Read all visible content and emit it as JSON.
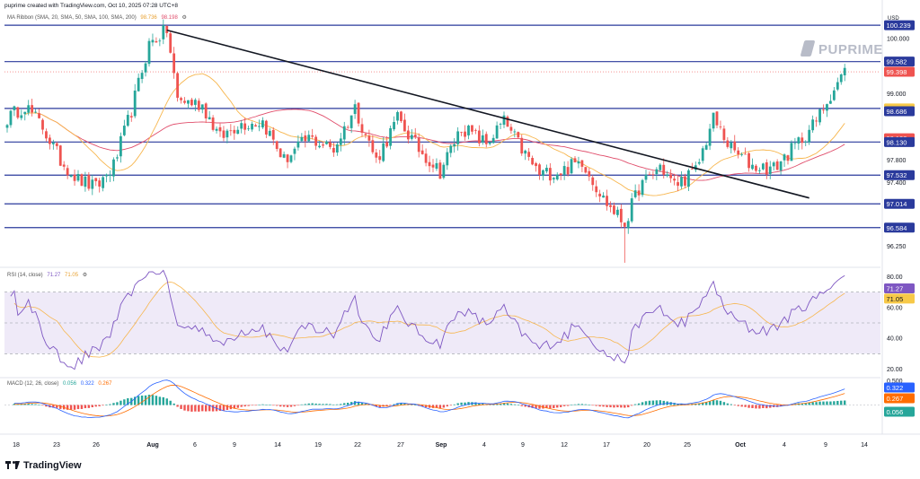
{
  "header": {
    "creator_line": "puprime created with TradingView.com, Oct 10, 2025 07:28 UTC+8"
  },
  "brand": {
    "name": "PUPRIME"
  },
  "currency": "USD",
  "footer": {
    "logo_text": "TradingView"
  },
  "colors": {
    "up": "#26a69a",
    "down": "#ef5350",
    "hline": "#2a3a9c",
    "trend": "#131722",
    "sma20": "#f7b64e",
    "sma50": "#e04d6b",
    "rsi": "#7e57c2",
    "rsi_ma": "#f7b64e",
    "rsi_band": "#efeaf8",
    "macd": "#2962ff",
    "signal": "#ff6d00",
    "hist_up": "#26a69a",
    "hist_down": "#ef5350"
  },
  "chart_data": [
    {
      "type": "candlestick",
      "indicator_label": "MA Ribbon (SMA, 20, SMA, 50, SMA, 100, SMA, 200)",
      "legend_values": [
        "98.736",
        "98.198"
      ],
      "y_ticks": [
        "100.000",
        "99.000",
        "97.800",
        "97.400",
        "96.250"
      ],
      "ylim": [
        95.9,
        100.5
      ],
      "x_ticks": [
        "18",
        "23",
        "26",
        "Aug",
        "6",
        "9",
        "14",
        "19",
        "22",
        "27",
        "Sep",
        "4",
        "9",
        "12",
        "17",
        "20",
        "25",
        "Oct",
        "4",
        "9",
        "14"
      ],
      "horizontal_levels": [
        100.239,
        99.582,
        98.736,
        98.13,
        97.532,
        97.014,
        96.584
      ],
      "price_labels": [
        {
          "text": "100.239",
          "value": 100.239,
          "color": "#2a3a9c"
        },
        {
          "text": "99.582",
          "value": 99.582,
          "color": "#2a3a9c"
        },
        {
          "text": "99.398",
          "value": 99.398,
          "color": "#ef5350"
        },
        {
          "text": "98.736",
          "value": 98.736,
          "color": "#f7c948"
        },
        {
          "text": "98.686",
          "value": 98.686,
          "color": "#2a3a9c"
        },
        {
          "text": "98.198",
          "value": 98.198,
          "color": "#ef5350"
        },
        {
          "text": "98.130",
          "value": 98.13,
          "color": "#2a3a9c"
        },
        {
          "text": "97.532",
          "value": 97.532,
          "color": "#2a3a9c"
        },
        {
          "text": "97.014",
          "value": 97.014,
          "color": "#2a3a9c"
        },
        {
          "text": "96.584",
          "value": 96.584,
          "color": "#2a3a9c"
        }
      ],
      "trendline": {
        "from": {
          "index": 45,
          "value": 100.15
        },
        "to": {
          "index": 226,
          "value": 97.12
        }
      },
      "anchors": [
        [
          0,
          98.55
        ],
        [
          5,
          98.8
        ],
        [
          10,
          98.4
        ],
        [
          15,
          97.8
        ],
        [
          20,
          97.45
        ],
        [
          25,
          97.3
        ],
        [
          30,
          97.7
        ],
        [
          35,
          98.7
        ],
        [
          40,
          99.9
        ],
        [
          45,
          100.15
        ],
        [
          48,
          98.9
        ],
        [
          55,
          98.8
        ],
        [
          60,
          98.2
        ],
        [
          65,
          98.45
        ],
        [
          72,
          98.5
        ],
        [
          78,
          97.8
        ],
        [
          85,
          98.2
        ],
        [
          92,
          98.0
        ],
        [
          98,
          98.75
        ],
        [
          104,
          97.8
        ],
        [
          110,
          98.55
        ],
        [
          116,
          98.0
        ],
        [
          122,
          97.6
        ],
        [
          128,
          98.4
        ],
        [
          135,
          98.1
        ],
        [
          140,
          98.5
        ],
        [
          146,
          97.9
        ],
        [
          150,
          97.55
        ],
        [
          156,
          97.6
        ],
        [
          162,
          97.8
        ],
        [
          168,
          97.1
        ],
        [
          174,
          96.65
        ],
        [
          178,
          97.3
        ],
        [
          184,
          97.7
        ],
        [
          188,
          97.35
        ],
        [
          194,
          97.6
        ],
        [
          199,
          98.55
        ],
        [
          204,
          98.0
        ],
        [
          210,
          97.7
        ],
        [
          216,
          97.65
        ],
        [
          222,
          98.05
        ],
        [
          228,
          98.5
        ],
        [
          232,
          99.0
        ],
        [
          236,
          99.4
        ]
      ],
      "series": [
        {
          "name": "SMA 20",
          "value": 98.736
        },
        {
          "name": "SMA 50",
          "value": 98.198
        }
      ]
    },
    {
      "type": "line",
      "indicator_label": "RSI (14, close)",
      "legend_values": [
        "71.27",
        "71.05"
      ],
      "ylim": [
        15,
        85
      ],
      "y_ticks": [
        "80.00",
        "60.00",
        "40.00",
        "20.00"
      ],
      "bands": [
        30,
        50,
        70
      ],
      "price_labels": [
        {
          "text": "71.27",
          "value": 71.27,
          "color": "#7e57c2"
        },
        {
          "text": "71.05",
          "value": 71.05,
          "color": "#f7c948"
        }
      ]
    },
    {
      "type": "bar",
      "indicator_label": "MACD (12, 26, close)",
      "legend_values": [
        "0.056",
        "0.322",
        "0.267"
      ],
      "y_ticks": [
        "0.500"
      ],
      "ylim": [
        -0.6,
        0.6
      ],
      "price_labels": [
        {
          "text": "0.322",
          "value": 0.322,
          "color": "#2962ff"
        },
        {
          "text": "0.267",
          "value": 0.267,
          "color": "#ff6d00"
        },
        {
          "text": "0.056",
          "value": 0.056,
          "color": "#26a69a"
        }
      ]
    }
  ]
}
